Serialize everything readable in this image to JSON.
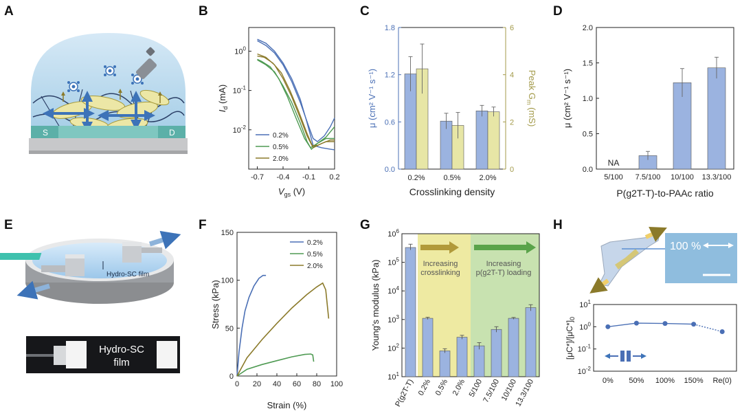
{
  "panel_letters": {
    "A": "A",
    "B": "B",
    "C": "C",
    "D": "D",
    "E": "E",
    "F": "F",
    "G": "G",
    "H": "H"
  },
  "colors": {
    "blue": "#4a6fb5",
    "green": "#4e9a52",
    "olive": "#8b7a2a",
    "bar_blue": "#9bb3e0",
    "bar_khaki": "#e7e6a6",
    "khaki_axis": "#a39a4a",
    "zone_yellow": "#eeeaa2",
    "zone_green": "#c8e2b0"
  },
  "illustrations": {
    "a": {
      "electrode_s": "S",
      "electrode_d": "D"
    },
    "e": {
      "film_label": "Hydro-SC film",
      "photo_label_1": "Hydro-SC",
      "photo_label_2": "film"
    },
    "h": {
      "strain_text": "100 %"
    }
  },
  "chart_data": [
    {
      "id": "B",
      "type": "line",
      "xlabel": "V",
      "xlabel_sub": "gs",
      "xlabel_unit": " (V)",
      "ylabel": "I",
      "ylabel_sub": "d",
      "ylabel_unit": " (mA)",
      "yscale": "log",
      "xlim": [
        -0.8,
        0.2
      ],
      "ylim": [
        0.001,
        4
      ],
      "xticks": [
        "-0.7",
        "-0.4",
        "-0.1",
        "0.2"
      ],
      "xtick_values": [
        -0.7,
        -0.4,
        -0.1,
        0.2
      ],
      "yticks": [
        "10^0",
        "10^-1",
        "10^-2"
      ],
      "ytick_values": [
        1,
        0.1,
        0.01
      ],
      "series": [
        {
          "name": "0.2%",
          "color": "#4a6fb5",
          "fwd": [
            [
              -0.7,
              2.0
            ],
            [
              -0.6,
              1.6
            ],
            [
              -0.5,
              1.0
            ],
            [
              -0.4,
              0.5
            ],
            [
              -0.3,
              0.2
            ],
            [
              -0.2,
              0.06
            ],
            [
              -0.12,
              0.015
            ],
            [
              -0.05,
              0.004
            ],
            [
              0.05,
              0.0035
            ],
            [
              0.15,
              0.0032
            ],
            [
              0.2,
              0.0031
            ]
          ],
          "rev": [
            [
              0.2,
              0.02
            ],
            [
              0.15,
              0.012
            ],
            [
              0.08,
              0.007
            ],
            [
              0.0,
              0.005
            ],
            [
              -0.05,
              0.006
            ],
            [
              -0.1,
              0.012
            ],
            [
              -0.2,
              0.05
            ],
            [
              -0.3,
              0.17
            ],
            [
              -0.4,
              0.45
            ],
            [
              -0.5,
              0.9
            ],
            [
              -0.6,
              1.4
            ],
            [
              -0.7,
              1.85
            ]
          ]
        },
        {
          "name": "0.5%",
          "color": "#4e9a52",
          "fwd": [
            [
              -0.7,
              0.6
            ],
            [
              -0.6,
              0.45
            ],
            [
              -0.5,
              0.3
            ],
            [
              -0.4,
              0.13
            ],
            [
              -0.3,
              0.05
            ],
            [
              -0.2,
              0.015
            ],
            [
              -0.12,
              0.005
            ],
            [
              -0.07,
              0.0032
            ],
            [
              0.0,
              0.0045
            ],
            [
              0.1,
              0.006
            ],
            [
              0.2,
              0.006
            ]
          ],
          "rev": [
            [
              0.2,
              0.012
            ],
            [
              0.1,
              0.0065
            ],
            [
              0.0,
              0.0045
            ],
            [
              -0.08,
              0.0035
            ],
            [
              -0.15,
              0.006
            ],
            [
              -0.25,
              0.02
            ],
            [
              -0.35,
              0.07
            ],
            [
              -0.45,
              0.2
            ],
            [
              -0.55,
              0.4
            ],
            [
              -0.65,
              0.55
            ],
            [
              -0.7,
              0.62
            ]
          ]
        },
        {
          "name": "2.0%",
          "color": "#8b7a2a",
          "fwd": [
            [
              -0.7,
              0.85
            ],
            [
              -0.6,
              0.7
            ],
            [
              -0.5,
              0.45
            ],
            [
              -0.4,
              0.2
            ],
            [
              -0.3,
              0.07
            ],
            [
              -0.2,
              0.02
            ],
            [
              -0.12,
              0.007
            ],
            [
              -0.05,
              0.0035
            ],
            [
              0.05,
              0.0045
            ],
            [
              0.15,
              0.0055
            ],
            [
              0.2,
              0.0055
            ]
          ],
          "rev": [
            [
              0.2,
              0.005
            ],
            [
              0.1,
              0.005
            ],
            [
              0.0,
              0.004
            ],
            [
              -0.06,
              0.004
            ],
            [
              -0.12,
              0.008
            ],
            [
              -0.22,
              0.03
            ],
            [
              -0.32,
              0.1
            ],
            [
              -0.42,
              0.28
            ],
            [
              -0.52,
              0.5
            ],
            [
              -0.62,
              0.7
            ],
            [
              -0.7,
              0.75
            ]
          ]
        }
      ]
    },
    {
      "id": "C",
      "type": "bar",
      "xlabel": "Crosslinking density",
      "categories": [
        "0.2%",
        "0.5%",
        "2.0%"
      ],
      "ylabel_left": "μ (cm² V⁻¹ s⁻¹)",
      "ylabel_right": "Peak G",
      "ylabel_right_sub": "m",
      "ylabel_right_unit": " (mS)",
      "ylim_left": [
        0,
        1.8
      ],
      "yticks_left": [
        "0.0",
        "0.6",
        "1.2",
        "1.8"
      ],
      "ytick_values_left": [
        0,
        0.6,
        1.2,
        1.8
      ],
      "ylim_right": [
        0,
        6
      ],
      "yticks_right": [
        "0",
        "2",
        "4",
        "6"
      ],
      "ytick_values_right": [
        0,
        2,
        4,
        6
      ],
      "series": [
        {
          "name": "mobility",
          "axis": "left",
          "color": "#9bb3e0",
          "values": [
            1.21,
            0.61,
            0.74
          ],
          "errors": [
            0.22,
            0.1,
            0.07
          ]
        },
        {
          "name": "peak gm",
          "axis": "right",
          "color": "#e7e6a6",
          "values": [
            4.25,
            1.85,
            2.43
          ],
          "errors": [
            1.05,
            0.55,
            0.2
          ]
        }
      ]
    },
    {
      "id": "D",
      "type": "bar",
      "xlabel": "P(g2T-T)-to-PAAc ratio",
      "ylabel": "μ (cm² V⁻¹ s⁻¹)",
      "categories": [
        "5/100",
        "7.5/100",
        "10/100",
        "13.3/100"
      ],
      "values": [
        0,
        0.19,
        1.22,
        1.43
      ],
      "errors": [
        0,
        0.06,
        0.2,
        0.15
      ],
      "na_label": "NA",
      "ylim": [
        0,
        2.0
      ],
      "yticks": [
        "0.0",
        "0.5",
        "1.0",
        "1.5",
        "2.0"
      ],
      "ytick_values": [
        0,
        0.5,
        1,
        1.5,
        2
      ]
    },
    {
      "id": "F",
      "type": "line",
      "xlabel": "Strain (%)",
      "ylabel": "Stress (kPa)",
      "xlim": [
        0,
        100
      ],
      "ylim": [
        0,
        150
      ],
      "xticks": [
        "0",
        "20",
        "40",
        "60",
        "80",
        "100"
      ],
      "xtick_values": [
        0,
        20,
        40,
        60,
        80,
        100
      ],
      "yticks": [
        "0",
        "50",
        "100",
        "150"
      ],
      "ytick_values": [
        0,
        50,
        100,
        150
      ],
      "series": [
        {
          "name": "0.2%",
          "color": "#4a6fb5",
          "points": [
            [
              0,
              0
            ],
            [
              2,
              25
            ],
            [
              5,
              50
            ],
            [
              8,
              68
            ],
            [
              12,
              82
            ],
            [
              17,
              94
            ],
            [
              22,
              102
            ],
            [
              26,
              105
            ],
            [
              29,
              105
            ]
          ]
        },
        {
          "name": "0.5%",
          "color": "#4e9a52",
          "points": [
            [
              0,
              0
            ],
            [
              10,
              7
            ],
            [
              25,
              12
            ],
            [
              40,
              16
            ],
            [
              55,
              20
            ],
            [
              68,
              22.5
            ],
            [
              74,
              23
            ],
            [
              76,
              22
            ],
            [
              77,
              15
            ]
          ]
        },
        {
          "name": "2.0%",
          "color": "#8b7a2a",
          "points": [
            [
              0,
              0
            ],
            [
              10,
              19
            ],
            [
              25,
              38
            ],
            [
              40,
              55
            ],
            [
              55,
              71
            ],
            [
              70,
              85
            ],
            [
              80,
              93
            ],
            [
              86,
              97
            ],
            [
              89,
              90
            ],
            [
              92,
              60
            ]
          ]
        }
      ]
    },
    {
      "id": "G",
      "type": "bar",
      "ylabel": "Young's modulus (kPa)",
      "yscale": "log",
      "ylim": [
        10,
        1000000
      ],
      "yticks": [
        "10^1",
        "10^2",
        "10^3",
        "10^4",
        "10^5",
        "10^6"
      ],
      "ytick_values": [
        10,
        100,
        1000,
        10000,
        100000,
        1000000
      ],
      "categories": [
        "P(g2T-T)",
        "0.2%",
        "0.5%",
        "2.0%",
        "5/100",
        "7.5/100",
        "10/100",
        "13.3/100"
      ],
      "values": [
        330000,
        1100,
        80,
        240,
        120,
        450,
        1100,
        2600
      ],
      "errors_hi": [
        430000,
        1200,
        95,
        280,
        155,
        560,
        1180,
        3300
      ],
      "errors_lo": [
        270000,
        1000,
        68,
        205,
        90,
        360,
        1020,
        2000
      ],
      "annotations": [
        {
          "text_1": "Increasing",
          "text_2": "crosslinking"
        },
        {
          "text_1": "Increasing",
          "text_2": "p(g2T-T) loading"
        }
      ]
    },
    {
      "id": "H",
      "type": "line",
      "ylabel": "[μC*]/[μC*]",
      "ylabel_sub": "0",
      "yscale": "log",
      "ylim": [
        0.01,
        10
      ],
      "yticks": [
        "10^1",
        "10^0",
        "10^-1",
        "10^-2"
      ],
      "ytick_values": [
        10,
        1,
        0.1,
        0.01
      ],
      "categories": [
        "0%",
        "50%",
        "100%",
        "150%",
        "Re(0)"
      ],
      "values": [
        1.0,
        1.45,
        1.4,
        1.3,
        0.6
      ]
    }
  ]
}
